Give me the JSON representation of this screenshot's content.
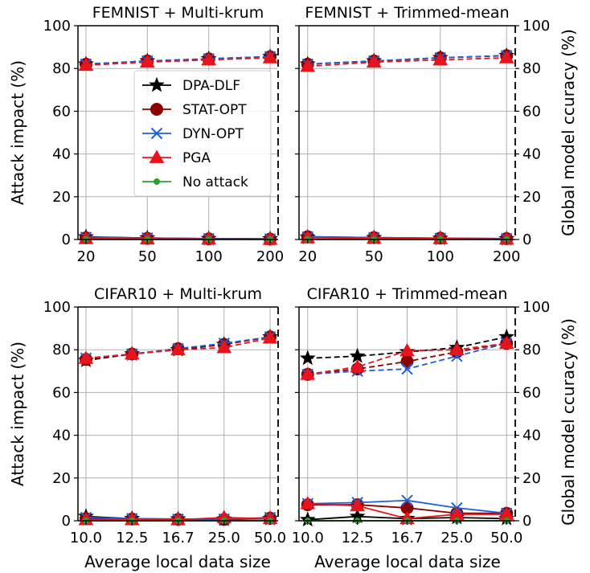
{
  "colors": {
    "DPA-DLF": "#000000",
    "STAT-OPT": "#8b0000",
    "DYN-OPT": "#1f5fd6",
    "PGA": "#e8141b",
    "No attack": "#2ca02c"
  },
  "legend": {
    "placement": "left-center of top-left panel",
    "entries": [
      {
        "label": "DPA-DLF",
        "series": "DPA-DLF",
        "marker": "star"
      },
      {
        "label": "STAT-OPT",
        "series": "STAT-OPT",
        "marker": "circle"
      },
      {
        "label": "DYN-OPT",
        "series": "DYN-OPT",
        "marker": "x"
      },
      {
        "label": "PGA",
        "series": "PGA",
        "marker": "triangle"
      },
      {
        "label": "No attack",
        "series": "No attack",
        "marker": "dot"
      }
    ]
  },
  "axis_labels": {
    "left_y": "Attack impact (%)",
    "right_y": "Global model ccuracy (%)",
    "x": "Average local data size"
  },
  "chart_data": [
    {
      "type": "line",
      "title": "FEMNIST + Multi-krum",
      "categories": [
        "20",
        "50",
        "100",
        "200"
      ],
      "ylim": [
        0,
        100
      ],
      "yticks": [
        "0",
        "20",
        "40",
        "60",
        "80",
        "100"
      ],
      "grid": true,
      "impact": [
        {
          "name": "DPA-DLF",
          "values": [
            1.2,
            0.7,
            0.4,
            0.3
          ]
        },
        {
          "name": "STAT-OPT",
          "values": [
            0.8,
            0.5,
            0.3,
            0.2
          ]
        },
        {
          "name": "DYN-OPT",
          "values": [
            1.0,
            0.7,
            0.4,
            0.2
          ]
        },
        {
          "name": "PGA",
          "values": [
            0.4,
            0.3,
            0.2,
            0.1
          ]
        },
        {
          "name": "No attack",
          "values": [
            0.0,
            0.0,
            0.0,
            0.0
          ]
        }
      ],
      "accuracy": [
        {
          "name": "DPA-DLF",
          "values": [
            82,
            83.5,
            84.5,
            85.5
          ]
        },
        {
          "name": "STAT-OPT",
          "values": [
            82,
            83.5,
            84.5,
            85.5
          ]
        },
        {
          "name": "DYN-OPT",
          "values": [
            82,
            83.5,
            84.5,
            85.5
          ]
        },
        {
          "name": "PGA",
          "values": [
            81.5,
            83,
            84,
            85
          ]
        }
      ]
    },
    {
      "type": "line",
      "title": "FEMNIST + Trimmed-mean",
      "categories": [
        "20",
        "50",
        "100",
        "200"
      ],
      "ylim": [
        0,
        100
      ],
      "yticks": [
        "0",
        "20",
        "40",
        "60",
        "80",
        "100"
      ],
      "grid": true,
      "impact": [
        {
          "name": "DPA-DLF",
          "values": [
            1.0,
            0.8,
            0.5,
            0.3
          ]
        },
        {
          "name": "STAT-OPT",
          "values": [
            1.3,
            0.9,
            0.6,
            0.4
          ]
        },
        {
          "name": "DYN-OPT",
          "values": [
            1.2,
            0.9,
            0.6,
            0.4
          ]
        },
        {
          "name": "PGA",
          "values": [
            0.8,
            0.6,
            0.4,
            0.2
          ]
        },
        {
          "name": "No attack",
          "values": [
            0.0,
            0.0,
            0.0,
            0.0
          ]
        }
      ],
      "accuracy": [
        {
          "name": "DPA-DLF",
          "values": [
            82,
            83.5,
            85,
            86
          ]
        },
        {
          "name": "STAT-OPT",
          "values": [
            82,
            83.5,
            85,
            86
          ]
        },
        {
          "name": "DYN-OPT",
          "values": [
            82,
            83.5,
            85,
            86
          ]
        },
        {
          "name": "PGA",
          "values": [
            81,
            83,
            84,
            85
          ]
        }
      ]
    },
    {
      "type": "line",
      "title": "CIFAR10 + Multi-krum",
      "categories": [
        "10.0",
        "12.5",
        "16.7",
        "25.0",
        "50.0"
      ],
      "ylim": [
        0,
        100
      ],
      "yticks": [
        "0",
        "20",
        "40",
        "60",
        "80",
        "100"
      ],
      "grid": true,
      "impact": [
        {
          "name": "DPA-DLF",
          "values": [
            2.0,
            1.0,
            0.8,
            0.7,
            1.0
          ]
        },
        {
          "name": "STAT-OPT",
          "values": [
            1.0,
            0.8,
            0.6,
            0.6,
            1.2
          ]
        },
        {
          "name": "DYN-OPT",
          "values": [
            1.5,
            1.0,
            0.7,
            0.8,
            1.5
          ]
        },
        {
          "name": "PGA",
          "values": [
            0.5,
            0.5,
            0.5,
            1.5,
            1.0
          ]
        },
        {
          "name": "No attack",
          "values": [
            0.0,
            0.0,
            0.0,
            0.0,
            0.0
          ]
        }
      ],
      "accuracy": [
        {
          "name": "DPA-DLF",
          "values": [
            75,
            78,
            80,
            82.5,
            86
          ]
        },
        {
          "name": "STAT-OPT",
          "values": [
            75.5,
            78,
            80.5,
            82.5,
            86
          ]
        },
        {
          "name": "DYN-OPT",
          "values": [
            76,
            78,
            80.5,
            83,
            86
          ]
        },
        {
          "name": "PGA",
          "values": [
            76,
            78,
            80,
            81,
            85.5
          ]
        }
      ]
    },
    {
      "type": "line",
      "title": "CIFAR10 + Trimmed-mean",
      "categories": [
        "10.0",
        "12.5",
        "16.7",
        "25.0",
        "50.0"
      ],
      "ylim": [
        0,
        100
      ],
      "yticks": [
        "0",
        "20",
        "40",
        "60",
        "80",
        "100"
      ],
      "grid": true,
      "impact": [
        {
          "name": "DPA-DLF",
          "values": [
            0.5,
            2.0,
            1.0,
            1.5,
            1.0
          ]
        },
        {
          "name": "STAT-OPT",
          "values": [
            7.5,
            7.5,
            6.0,
            3.5,
            3.5
          ]
        },
        {
          "name": "DYN-OPT",
          "values": [
            8.0,
            8.5,
            9.5,
            6.0,
            3.5
          ]
        },
        {
          "name": "PGA",
          "values": [
            8.0,
            7.0,
            1.0,
            3.0,
            3.0
          ]
        },
        {
          "name": "No attack",
          "values": [
            0.0,
            0.0,
            0.0,
            0.0,
            0.0
          ]
        }
      ],
      "accuracy": [
        {
          "name": "DPA-DLF",
          "values": [
            76,
            77,
            79,
            81,
            86
          ]
        },
        {
          "name": "STAT-OPT",
          "values": [
            68.5,
            71,
            74.5,
            79,
            83
          ]
        },
        {
          "name": "DYN-OPT",
          "values": [
            68.5,
            70,
            71,
            77,
            83
          ]
        },
        {
          "name": "PGA",
          "values": [
            68.5,
            72,
            79.5,
            80,
            83
          ]
        }
      ]
    }
  ]
}
